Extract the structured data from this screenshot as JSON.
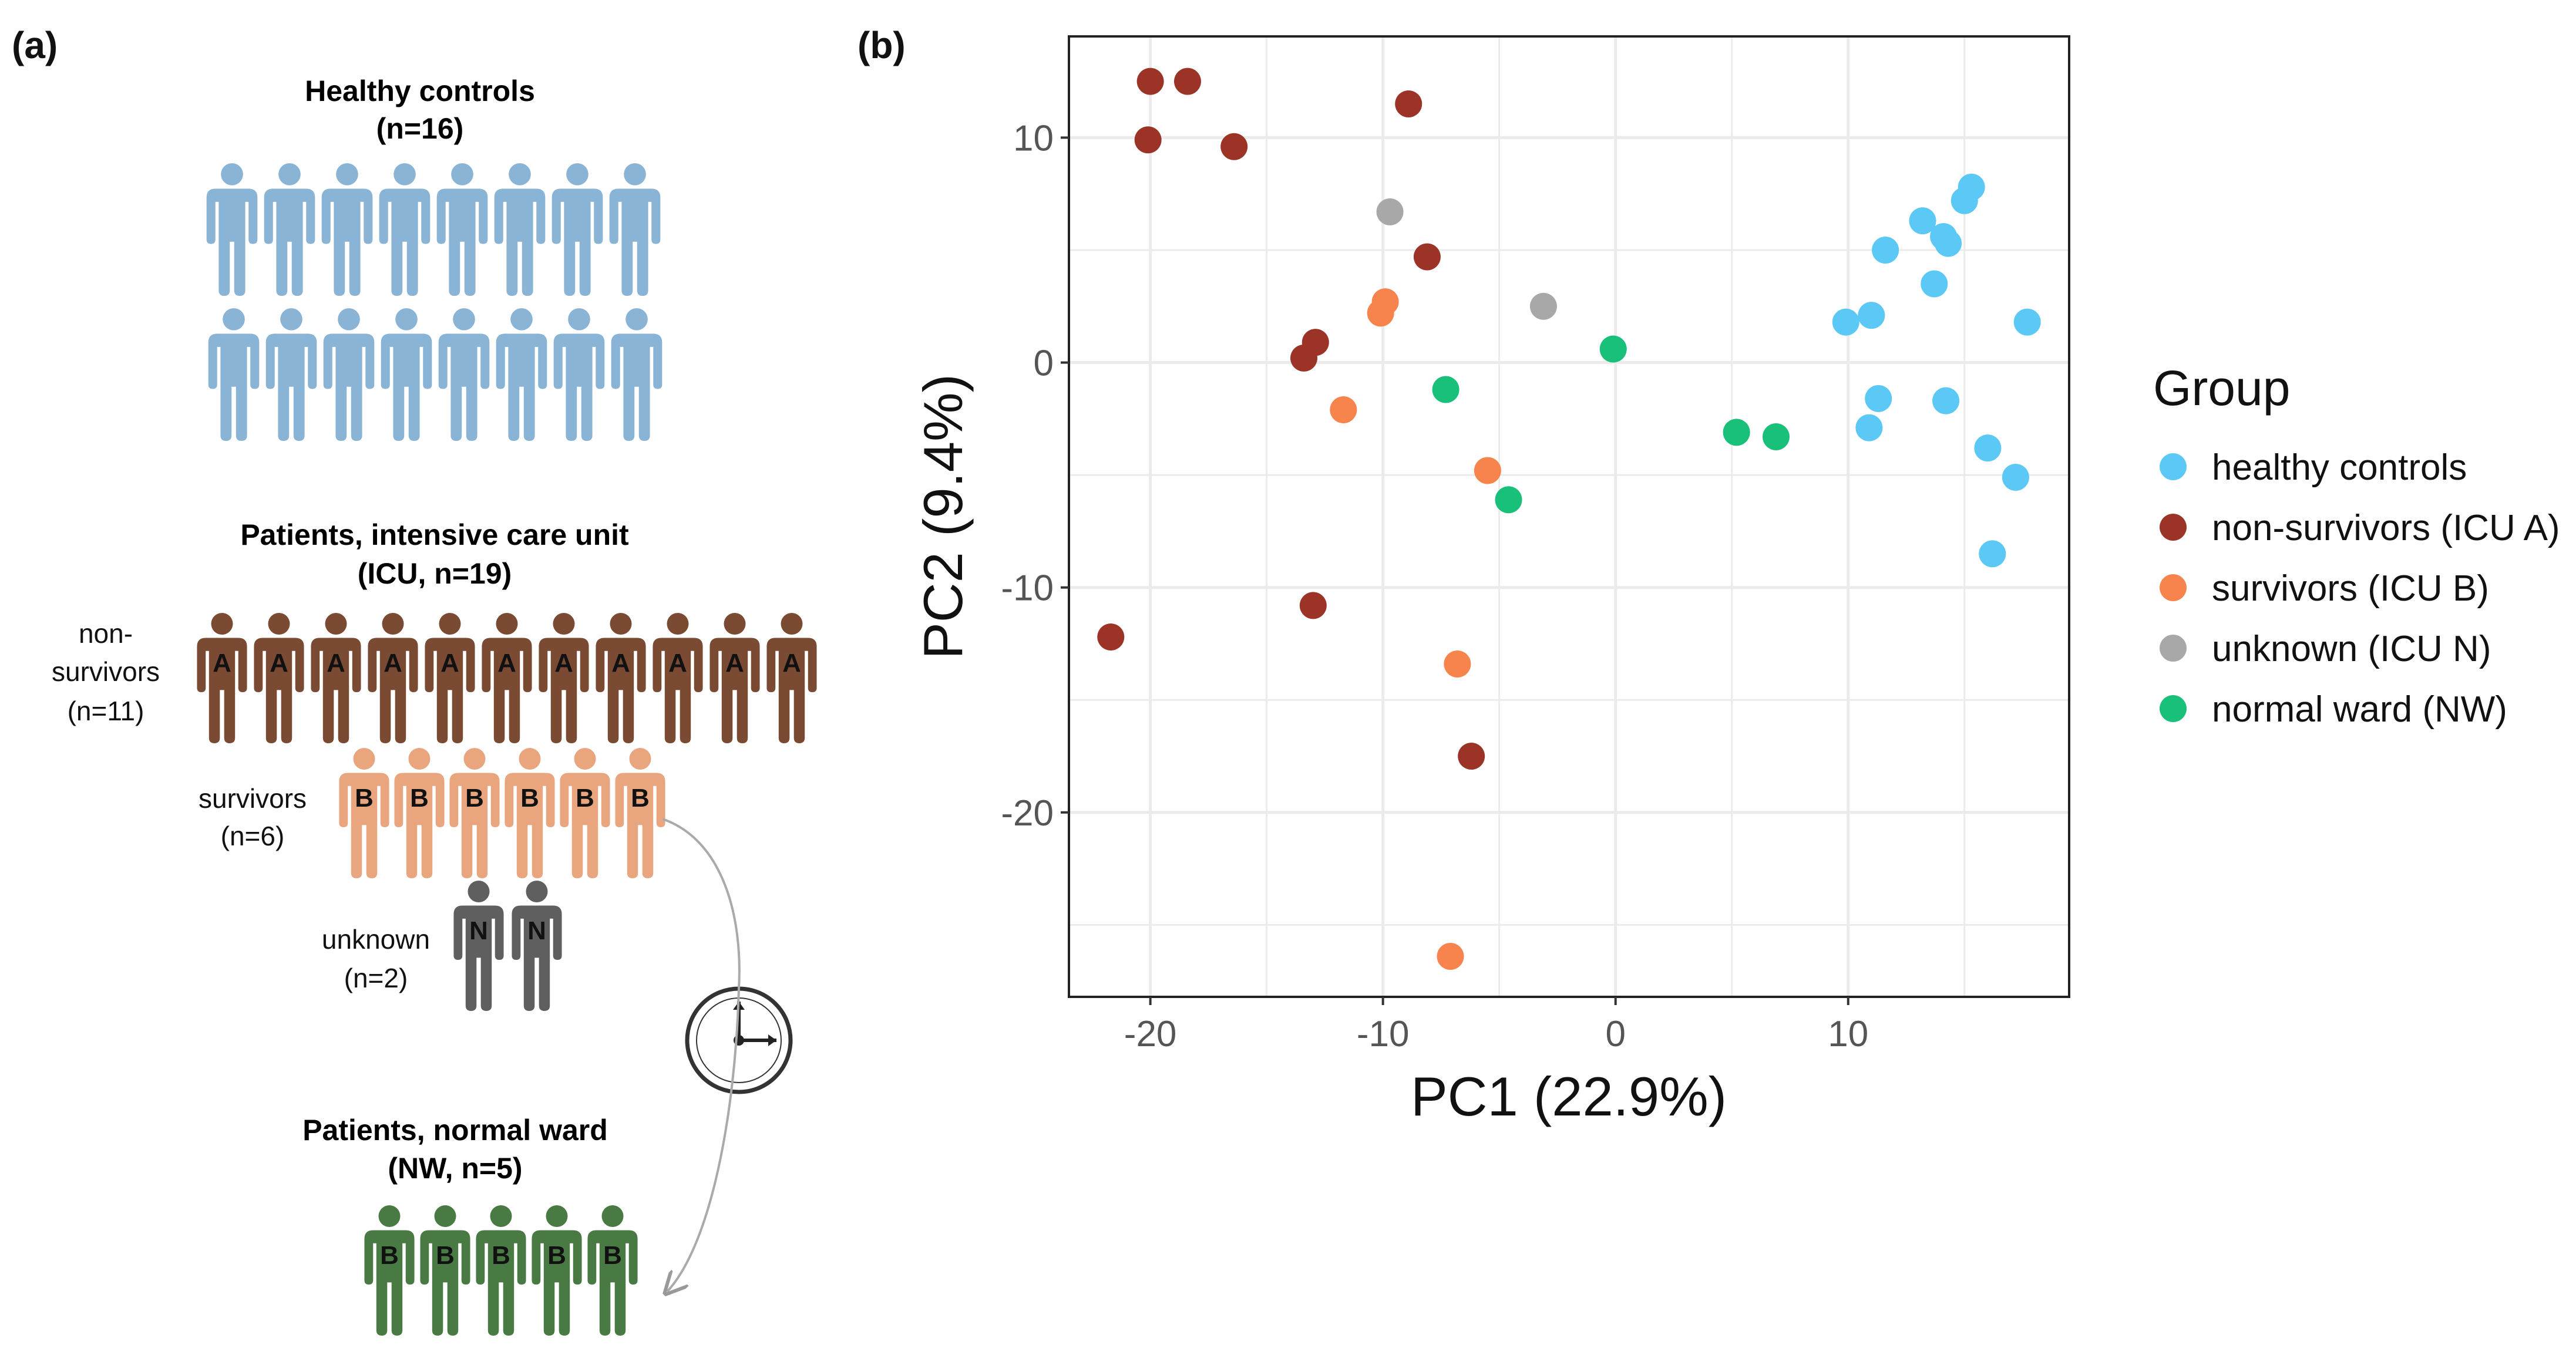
{
  "panel_a": {
    "label": "(a)",
    "healthy": {
      "title_line1": "Healthy controls",
      "title_line2": "(n=16)",
      "count": 16,
      "color": "#8ab4d6"
    },
    "icu": {
      "title_line1": "Patients, intensive care unit",
      "title_line2": "(ICU, n=19)",
      "non_survivors": {
        "label_line1": "non-",
        "label_line2": "survivors",
        "label_line3": "(n=11)",
        "count": 11,
        "letter": "A",
        "color": "#7a4a33"
      },
      "survivors": {
        "label_line1": "survivors",
        "label_line2": "(n=6)",
        "count": 6,
        "letter": "B",
        "color": "#e8a57e"
      },
      "unknown": {
        "label_line1": "unknown",
        "label_line2": "(n=2)",
        "count": 2,
        "letter": "N",
        "color": "#5f5f5f"
      }
    },
    "nw": {
      "title_line1": "Patients, normal ward",
      "title_line2": "(NW, n=5)",
      "count": 5,
      "letter": "B",
      "color": "#4a7a44"
    }
  },
  "panel_b": {
    "label": "(b)"
  },
  "chart_data": {
    "type": "scatter",
    "xlabel": "PC1 (22.9%)",
    "ylabel": "PC2 (9.4%)",
    "xlim": [
      -23.5,
      19.5
    ],
    "ylim": [
      -28.2,
      14.5
    ],
    "xticks": [
      -20,
      -10,
      0,
      10
    ],
    "yticks": [
      10,
      0,
      -10,
      -20
    ],
    "grid": true,
    "legend_title": "Group",
    "series": [
      {
        "name": "healthy controls",
        "color": "#5bc8f5",
        "points": [
          [
            9.9,
            1.8
          ],
          [
            11,
            2.1
          ],
          [
            11.3,
            -1.6
          ],
          [
            10.9,
            -2.9
          ],
          [
            11.6,
            5
          ],
          [
            13.2,
            6.3
          ],
          [
            13.7,
            3.5
          ],
          [
            14.1,
            5.6
          ],
          [
            14.3,
            5.3
          ],
          [
            14.2,
            -1.7
          ],
          [
            15,
            7.2
          ],
          [
            15.3,
            7.8
          ],
          [
            16,
            -3.8
          ],
          [
            16.2,
            -8.5
          ],
          [
            17.2,
            -5.1
          ],
          [
            17.7,
            1.8
          ]
        ]
      },
      {
        "name": "non-survivors (ICU A)",
        "color": "#9b3427",
        "points": [
          [
            -20,
            12.5
          ],
          [
            -18.4,
            12.5
          ],
          [
            -20.1,
            9.9
          ],
          [
            -16.4,
            9.6
          ],
          [
            -8.9,
            11.5
          ],
          [
            -8.1,
            4.7
          ],
          [
            -12.9,
            0.9
          ],
          [
            -13.4,
            0.2
          ],
          [
            -13,
            -10.8
          ],
          [
            -21.7,
            -12.2
          ],
          [
            -6.2,
            -17.5
          ]
        ]
      },
      {
        "name": "survivors (ICU B)",
        "color": "#f7834d",
        "points": [
          [
            -9.9,
            2.7
          ],
          [
            -10.1,
            2.2
          ],
          [
            -11.7,
            -2.1
          ],
          [
            -5.5,
            -4.8
          ],
          [
            -6.8,
            -13.4
          ],
          [
            -7.1,
            -26.4
          ]
        ]
      },
      {
        "name": "unknown (ICU N)",
        "color": "#a8a8a8",
        "points": [
          [
            -9.7,
            6.7
          ],
          [
            -3.1,
            2.5
          ]
        ]
      },
      {
        "name": "normal ward (NW)",
        "color": "#19c07a",
        "points": [
          [
            -0.1,
            0.6
          ],
          [
            -7.3,
            -1.2
          ],
          [
            -4.6,
            -6.1
          ],
          [
            5.2,
            -3.1
          ],
          [
            6.9,
            -3.3
          ]
        ]
      }
    ]
  }
}
